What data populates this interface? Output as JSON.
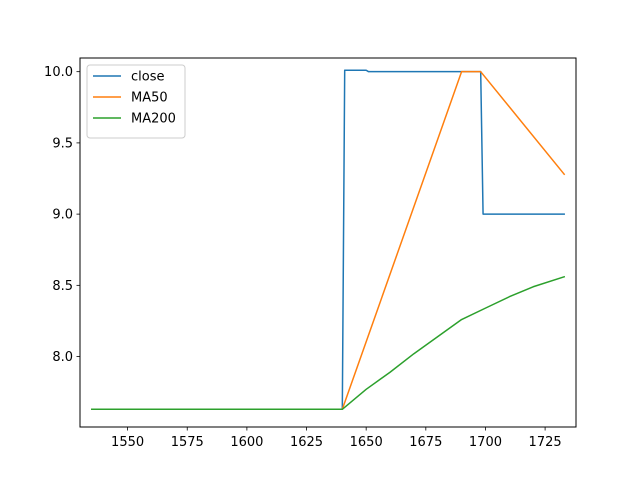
{
  "chart_data": {
    "type": "line",
    "title": "",
    "xlabel": "",
    "ylabel": "",
    "xlim": [
      1530.05,
      1737.95
    ],
    "ylim": [
      7.5055,
      10.096
    ],
    "grid": false,
    "legend_position": "top-left",
    "xticks": [
      1550,
      1575,
      1600,
      1625,
      1650,
      1675,
      1700,
      1725
    ],
    "yticks": [
      8.0,
      8.5,
      9.0,
      9.5,
      10.0
    ],
    "xtick_labels": [
      "1550",
      "1575",
      "1600",
      "1625",
      "1650",
      "1675",
      "1700",
      "1725"
    ],
    "ytick_labels": [
      "8.0",
      "8.5",
      "9.0",
      "9.5",
      "10.0"
    ],
    "series": [
      {
        "name": "close",
        "color": "#1f77b4",
        "x": [
          1535,
          1640,
          1641,
          1650,
          1651,
          1698,
          1699,
          1733
        ],
        "y": [
          7.63,
          7.63,
          10.01,
          10.01,
          10.0,
          10.0,
          9.0,
          9.0
        ]
      },
      {
        "name": "MA50",
        "color": "#ff7f0e",
        "x": [
          1535,
          1640,
          1690,
          1698,
          1733
        ],
        "y": [
          7.63,
          7.63,
          10.0,
          10.0,
          9.28
        ]
      },
      {
        "name": "MA200",
        "color": "#2ca02c",
        "x": [
          1535,
          1640,
          1650,
          1660,
          1670,
          1680,
          1690,
          1700,
          1710,
          1720,
          1733
        ],
        "y": [
          7.63,
          7.63,
          7.77,
          7.89,
          8.02,
          8.14,
          8.26,
          8.34,
          8.42,
          8.49,
          8.56
        ]
      }
    ]
  }
}
